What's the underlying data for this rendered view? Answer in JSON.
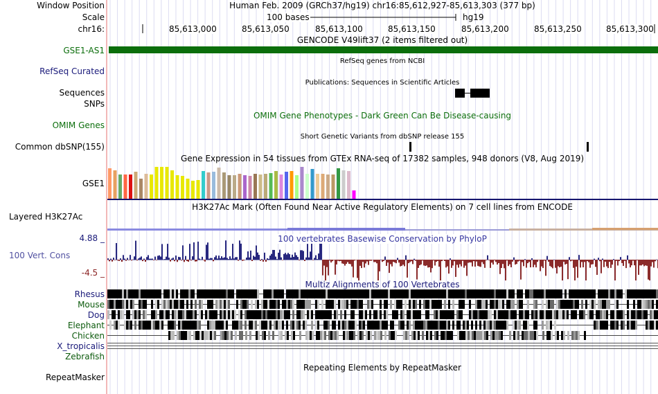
{
  "header": {
    "window_position_label": "Window Position",
    "scale_label": "Scale",
    "chrom_label": "chr16:",
    "assembly_text": "Human Feb. 2009 (GRCh37/hg19)",
    "position_text": "chr16:85,612,927-85,613,303 (377 bp)",
    "scale_text": "100 bases",
    "scale_db": "hg19",
    "ticks": [
      "85,613,000",
      "85,613,050",
      "85,613,100",
      "85,613,150",
      "85,613,200",
      "85,613,250",
      "85,613,300"
    ]
  },
  "tracks": {
    "gencode": {
      "title": "GENCODE V49lift37 (2 items filtered out)",
      "label": "GSE1-AS1",
      "color": "#0b6e0b"
    },
    "refseq": {
      "label": "RefSeq Curated",
      "title": "RefSeq genes from NCBI"
    },
    "publications": {
      "label": "Sequences",
      "title": "Publications: Sequences in Scientific Articles"
    },
    "snps_label": "SNPs",
    "omim": {
      "label": "OMIM Genes",
      "title": "OMIM Gene Phenotypes - Dark Green Can Be Disease-causing"
    },
    "dbsnp": {
      "label": "Common dbSNP(155)",
      "title": "Short Genetic Variants from dbSNP release 155"
    },
    "gtex": {
      "label": "GSE1",
      "title": "Gene Expression in 54 tissues from GTEx RNA-seq of 17382 samples, 948 donors (V8, Aug 2019)",
      "colors": [
        "#ff9966",
        "#e8a060",
        "#66aa66",
        "#ff6644",
        "#dd1111",
        "#ccaa77",
        "#aa8866",
        "#ddbb99",
        "#e8e800",
        "#e8e800",
        "#e8e800",
        "#e8e800",
        "#e8e800",
        "#e8e800",
        "#e8e800",
        "#e8e800",
        "#e8e800",
        "#e8e800",
        "#33cccc",
        "#cc9988",
        "#99bbdd",
        "#ccbbaa",
        "#aa9977",
        "#998866",
        "#bbaa88",
        "#cc9977",
        "#aa66cc",
        "#cc88aa",
        "#997755",
        "#ccbb88",
        "#bbaa77",
        "#55bb55",
        "#aabb44",
        "#dd88dd",
        "#5566ee",
        "#ff9900",
        "#aaff88",
        "#aa88cc",
        "#ccffcc",
        "#3399cc",
        "#eecc99",
        "#ddaa77",
        "#ccaa88",
        "#bb9966",
        "#339944",
        "#cccccc",
        "#ddbbcc",
        "#ff00ff"
      ],
      "values": [
        0.92,
        0.86,
        0.72,
        0.72,
        0.72,
        0.82,
        0.6,
        0.74,
        0.72,
        0.96,
        0.96,
        0.96,
        0.86,
        0.7,
        0.68,
        0.6,
        0.54,
        0.56,
        0.84,
        0.8,
        0.82,
        0.94,
        0.8,
        0.7,
        0.7,
        0.74,
        0.7,
        0.68,
        0.74,
        0.72,
        0.74,
        0.78,
        0.84,
        0.72,
        0.82,
        0.84,
        0.7,
        0.96,
        0.74,
        0.9,
        0.74,
        0.76,
        0.72,
        0.72,
        0.92,
        0.86,
        0.84,
        0.24
      ]
    },
    "h3k27ac": {
      "label": "Layered H3K27Ac",
      "title": "H3K27Ac Mark (Often Found Near Active Regulatory Elements) on 7 cell lines from ENCODE"
    },
    "conservation": {
      "label": "100 Vert. Cons",
      "title": "100 vertebrates Basewise Conservation by PhyloP",
      "max_label": "4.88 _",
      "min_label": "-4.5 _",
      "positive_color": "#28287f",
      "negative_color": "#8b2b2b"
    },
    "multiz": {
      "title": "Multiz Alignments of 100 Vertebrates",
      "species": [
        {
          "name": "Rhesus",
          "color": "#1a1a7a"
        },
        {
          "name": "Mouse",
          "color": "#0c5a0c"
        },
        {
          "name": "Dog",
          "color": "#1a1a7a"
        },
        {
          "name": "Elephant",
          "color": "#0c5a0c"
        },
        {
          "name": "Chicken",
          "color": "#0c5a0c"
        },
        {
          "name": "X_tropicalis",
          "color": "#1a1a7a"
        },
        {
          "name": "Zebrafish",
          "color": "#0c5a0c"
        }
      ]
    },
    "repeatmasker": {
      "label": "RepeatMasker",
      "title": "Repeating Elements by RepeatMasker"
    }
  }
}
